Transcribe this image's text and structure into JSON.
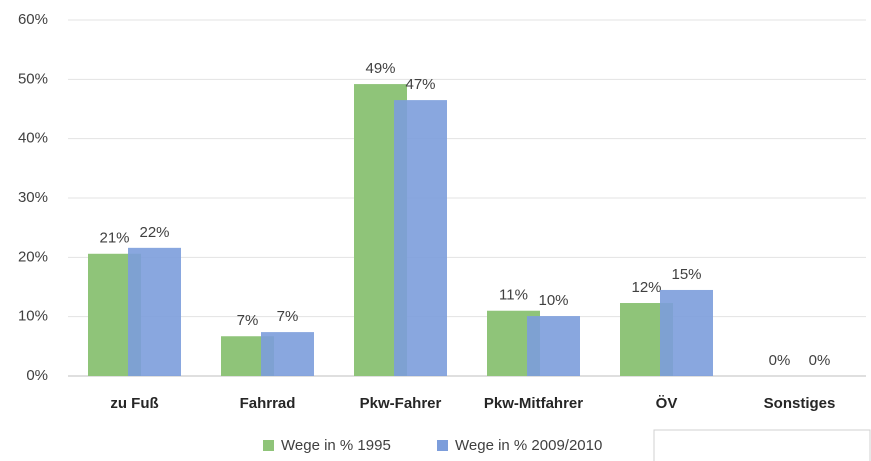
{
  "chart_data": {
    "type": "bar",
    "categories": [
      "zu Fuß",
      "Fahrrad",
      "Pkw-Fahrer",
      "Pkw-Mitfahrer",
      "ÖV",
      "Sonstiges"
    ],
    "series": [
      {
        "name": "Wege in % 1995",
        "color": "#8fc479",
        "values": [
          20.6,
          6.7,
          49.2,
          11.0,
          12.3,
          0
        ],
        "value_labels": [
          "21%",
          "7%",
          "49%",
          "11%",
          "12%",
          "0%"
        ]
      },
      {
        "name": "Wege in % 2009/2010",
        "color": "#7c9ddb",
        "values": [
          21.6,
          7.4,
          46.5,
          10.1,
          14.5,
          0
        ],
        "value_labels": [
          "22%",
          "7%",
          "47%",
          "10%",
          "15%",
          "0%"
        ]
      }
    ],
    "ylim": [
      0,
      60
    ],
    "yticks": [
      {
        "value": 0,
        "label": "0%"
      },
      {
        "value": 10,
        "label": "10%"
      },
      {
        "value": 20,
        "label": "20%"
      },
      {
        "value": 30,
        "label": "30%"
      },
      {
        "value": 40,
        "label": "40%"
      },
      {
        "value": 50,
        "label": "50%"
      },
      {
        "value": 60,
        "label": "60%"
      }
    ],
    "grid": true,
    "legend": "bottom"
  }
}
